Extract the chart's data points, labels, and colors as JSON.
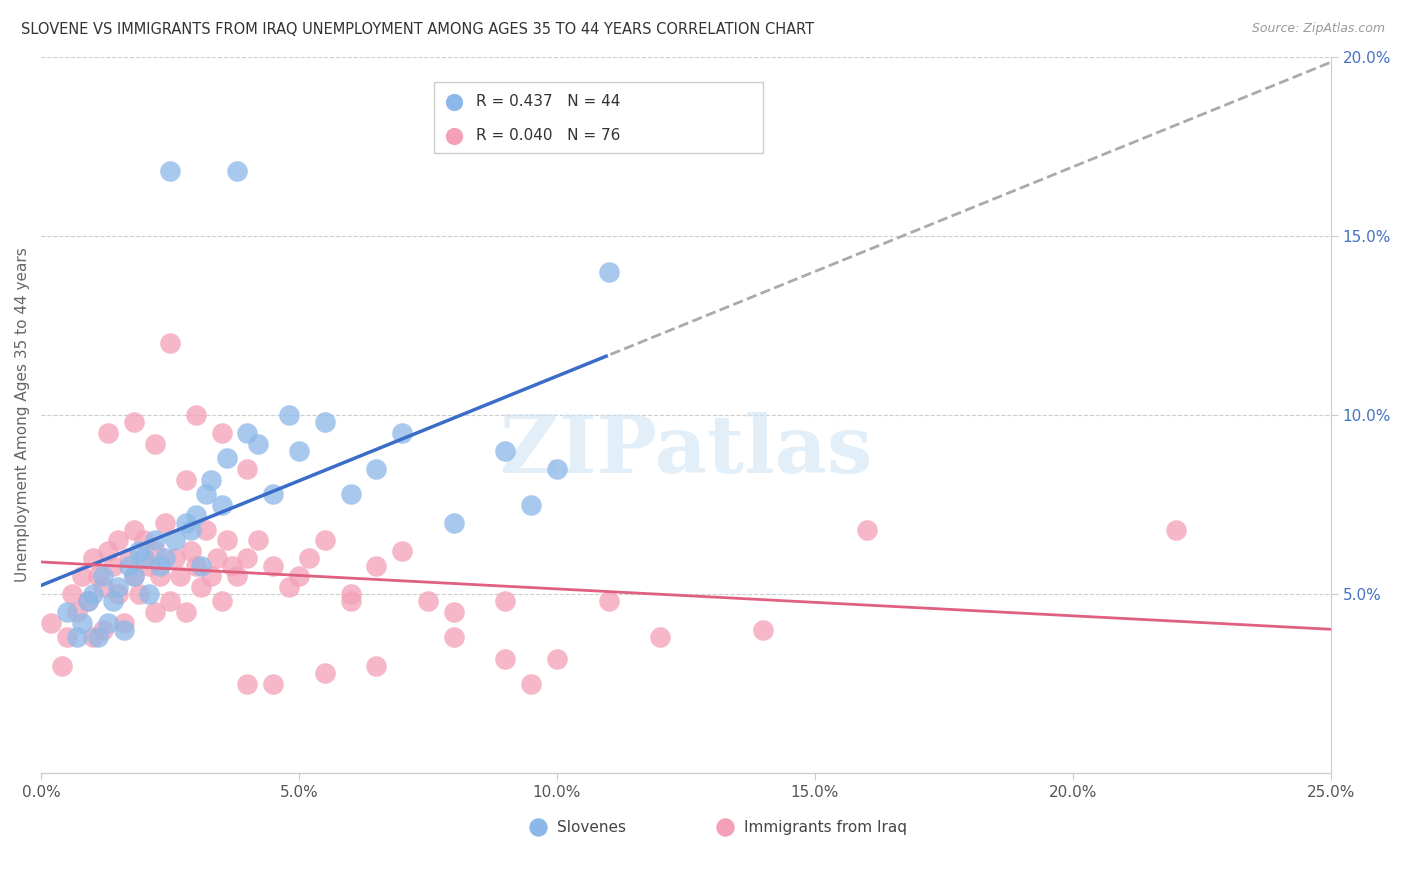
{
  "title": "SLOVENE VS IMMIGRANTS FROM IRAQ UNEMPLOYMENT AMONG AGES 35 TO 44 YEARS CORRELATION CHART",
  "source": "Source: ZipAtlas.com",
  "ylabel": "Unemployment Among Ages 35 to 44 years",
  "xlim": [
    0,
    0.25
  ],
  "ylim": [
    0,
    0.2
  ],
  "xticks": [
    0.0,
    0.05,
    0.1,
    0.15,
    0.2,
    0.25
  ],
  "yticks": [
    0.05,
    0.1,
    0.15,
    0.2
  ],
  "xticklabels": [
    "0.0%",
    "5.0%",
    "10.0%",
    "15.0%",
    "20.0%",
    "25.0%"
  ],
  "yticklabels": [
    "5.0%",
    "10.0%",
    "15.0%",
    "20.0%"
  ],
  "slovene_color": "#8BB8E8",
  "iraq_color": "#F4A0B8",
  "slovene_line_color": "#3B6CC7",
  "iraq_line_color": "#E06080",
  "dashed_color": "#AAAAAA",
  "slovene_R": 0.437,
  "slovene_N": 44,
  "iraq_R": 0.04,
  "iraq_N": 76,
  "background_color": "#FFFFFF",
  "grid_color": "#CCCCCC",
  "watermark": "ZIPatlas",
  "slovene_x": [
    0.005,
    0.007,
    0.008,
    0.009,
    0.01,
    0.011,
    0.012,
    0.013,
    0.014,
    0.015,
    0.016,
    0.017,
    0.018,
    0.019,
    0.02,
    0.021,
    0.022,
    0.023,
    0.024,
    0.025,
    0.026,
    0.028,
    0.029,
    0.03,
    0.031,
    0.032,
    0.033,
    0.035,
    0.036,
    0.038,
    0.04,
    0.042,
    0.045,
    0.048,
    0.05,
    0.055,
    0.06,
    0.065,
    0.07,
    0.08,
    0.09,
    0.095,
    0.1,
    0.11
  ],
  "slovene_y": [
    0.045,
    0.038,
    0.042,
    0.048,
    0.05,
    0.038,
    0.055,
    0.042,
    0.048,
    0.052,
    0.04,
    0.058,
    0.055,
    0.062,
    0.06,
    0.05,
    0.065,
    0.058,
    0.06,
    0.168,
    0.065,
    0.07,
    0.068,
    0.072,
    0.058,
    0.078,
    0.082,
    0.075,
    0.088,
    0.168,
    0.095,
    0.092,
    0.078,
    0.1,
    0.09,
    0.098,
    0.078,
    0.085,
    0.095,
    0.07,
    0.09,
    0.075,
    0.085,
    0.14
  ],
  "iraq_x": [
    0.002,
    0.004,
    0.005,
    0.006,
    0.007,
    0.008,
    0.009,
    0.01,
    0.01,
    0.011,
    0.012,
    0.012,
    0.013,
    0.014,
    0.015,
    0.015,
    0.016,
    0.017,
    0.018,
    0.018,
    0.019,
    0.02,
    0.021,
    0.022,
    0.022,
    0.023,
    0.024,
    0.025,
    0.026,
    0.027,
    0.028,
    0.029,
    0.03,
    0.031,
    0.032,
    0.033,
    0.034,
    0.035,
    0.036,
    0.037,
    0.038,
    0.04,
    0.042,
    0.045,
    0.048,
    0.05,
    0.052,
    0.055,
    0.06,
    0.065,
    0.07,
    0.075,
    0.08,
    0.09,
    0.095,
    0.1,
    0.11,
    0.12,
    0.14,
    0.16,
    0.013,
    0.018,
    0.022,
    0.028,
    0.035,
    0.04,
    0.045,
    0.055,
    0.065,
    0.08,
    0.025,
    0.03,
    0.04,
    0.06,
    0.09,
    0.22
  ],
  "iraq_y": [
    0.042,
    0.03,
    0.038,
    0.05,
    0.045,
    0.055,
    0.048,
    0.06,
    0.038,
    0.055,
    0.052,
    0.04,
    0.062,
    0.058,
    0.05,
    0.065,
    0.042,
    0.06,
    0.055,
    0.068,
    0.05,
    0.065,
    0.058,
    0.045,
    0.062,
    0.055,
    0.07,
    0.048,
    0.06,
    0.055,
    0.045,
    0.062,
    0.058,
    0.052,
    0.068,
    0.055,
    0.06,
    0.048,
    0.065,
    0.058,
    0.055,
    0.06,
    0.065,
    0.058,
    0.052,
    0.055,
    0.06,
    0.065,
    0.05,
    0.058,
    0.062,
    0.048,
    0.038,
    0.032,
    0.025,
    0.032,
    0.048,
    0.038,
    0.04,
    0.068,
    0.095,
    0.098,
    0.092,
    0.082,
    0.095,
    0.085,
    0.025,
    0.028,
    0.03,
    0.045,
    0.12,
    0.1,
    0.025,
    0.048,
    0.048,
    0.068
  ]
}
